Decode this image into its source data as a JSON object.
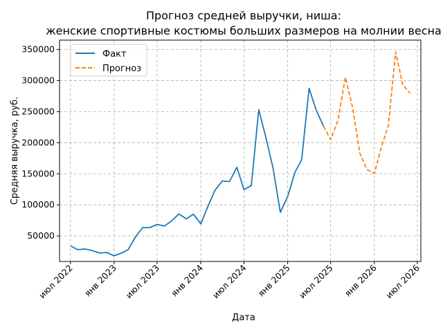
{
  "chart_data": {
    "type": "line",
    "title_line1": "Прогноз средней выручки, ниша:",
    "title_line2": "женские спортивные костюмы больших размеров на молнии весна",
    "xlabel": "Дата",
    "ylabel": "Средняя выручка, руб.",
    "xlim": [
      "2022-05-16",
      "2026-07-16"
    ],
    "ylim": [
      9000,
      365000
    ],
    "x_ticks": [
      {
        "date": "2022-07-01",
        "label": "июл 2022"
      },
      {
        "date": "2023-01-01",
        "label": "янв 2023"
      },
      {
        "date": "2023-07-01",
        "label": "июл 2023"
      },
      {
        "date": "2024-01-01",
        "label": "янв 2024"
      },
      {
        "date": "2024-07-01",
        "label": "июл 2024"
      },
      {
        "date": "2025-01-01",
        "label": "янв 2025"
      },
      {
        "date": "2025-07-01",
        "label": "июл 2025"
      },
      {
        "date": "2026-01-01",
        "label": "янв 2026"
      },
      {
        "date": "2026-07-01",
        "label": "июл 2026"
      }
    ],
    "y_ticks": [
      50000,
      100000,
      150000,
      200000,
      250000,
      300000,
      350000
    ],
    "grid": true,
    "legend_position": "top-left",
    "series": [
      {
        "name": "Факт",
        "color": "#1f77b4",
        "style": "solid",
        "points": [
          [
            "2022-07-01",
            34000
          ],
          [
            "2022-08-01",
            28000
          ],
          [
            "2022-09-01",
            29000
          ],
          [
            "2022-10-01",
            26500
          ],
          [
            "2022-11-01",
            22500
          ],
          [
            "2022-12-01",
            23500
          ],
          [
            "2023-01-01",
            18000
          ],
          [
            "2023-02-01",
            22500
          ],
          [
            "2023-03-01",
            28000
          ],
          [
            "2023-04-01",
            48500
          ],
          [
            "2023-05-01",
            63500
          ],
          [
            "2023-06-01",
            63500
          ],
          [
            "2023-07-01",
            68500
          ],
          [
            "2023-08-01",
            66000
          ],
          [
            "2023-09-01",
            74500
          ],
          [
            "2023-10-01",
            85500
          ],
          [
            "2023-11-01",
            77500
          ],
          [
            "2023-12-01",
            85000
          ],
          [
            "2024-01-01",
            69500
          ],
          [
            "2024-02-01",
            98500
          ],
          [
            "2024-03-01",
            123500
          ],
          [
            "2024-04-01",
            138500
          ],
          [
            "2024-05-01",
            137500
          ],
          [
            "2024-06-01",
            160500
          ],
          [
            "2024-07-01",
            124500
          ],
          [
            "2024-08-01",
            131000
          ],
          [
            "2024-09-01",
            253000
          ],
          [
            "2024-10-01",
            209000
          ],
          [
            "2024-11-01",
            158000
          ],
          [
            "2024-12-01",
            88000
          ],
          [
            "2025-01-01",
            113500
          ],
          [
            "2025-02-01",
            152500
          ],
          [
            "2025-03-01",
            172500
          ],
          [
            "2025-04-01",
            287500
          ],
          [
            "2025-05-01",
            252500
          ],
          [
            "2025-06-01",
            226500
          ]
        ]
      },
      {
        "name": "Прогноз",
        "color": "#ff7f0e",
        "style": "dashed",
        "points": [
          [
            "2025-06-01",
            226500
          ],
          [
            "2025-07-01",
            205000
          ],
          [
            "2025-08-01",
            236000
          ],
          [
            "2025-09-01",
            305000
          ],
          [
            "2025-10-01",
            257500
          ],
          [
            "2025-11-01",
            183000
          ],
          [
            "2025-12-01",
            157000
          ],
          [
            "2026-01-01",
            150500
          ],
          [
            "2026-02-01",
            194500
          ],
          [
            "2026-03-01",
            227500
          ],
          [
            "2026-04-01",
            346000
          ],
          [
            "2026-05-01",
            293000
          ],
          [
            "2026-06-01",
            279500
          ]
        ]
      }
    ]
  }
}
